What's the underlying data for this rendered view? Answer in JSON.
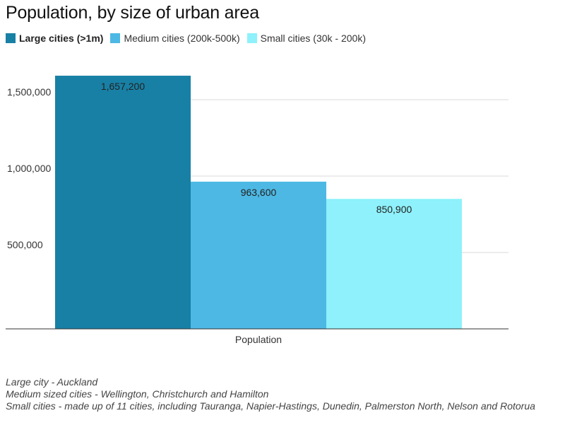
{
  "chart_data": {
    "type": "bar",
    "title": "Population, by size of urban area",
    "categories": [
      "Population"
    ],
    "series": [
      {
        "name": "Large cities (>1m)",
        "values": [
          1657200
        ],
        "label": "1,657,200",
        "color": "#1880a5",
        "highlighted": true
      },
      {
        "name": "Medium cities (200k-500k)",
        "values": [
          963600
        ],
        "label": "963,600",
        "color": "#4db8e4",
        "highlighted": false
      },
      {
        "name": "Small cities (30k - 200k)",
        "values": [
          850900
        ],
        "label": "850,900",
        "color": "#8ef1fb",
        "highlighted": false
      }
    ],
    "ylim": [
      0,
      1650000
    ],
    "yticks": [
      500000,
      1000000,
      1500000
    ],
    "ytick_labels": [
      "500,000",
      "1,000,000",
      "1,500,000"
    ],
    "xlabel": "",
    "ylabel": "",
    "grid": true,
    "legend_position": "top-left"
  },
  "notes": [
    "Large city - Auckland",
    "Medium sized cities - Wellington, Christchurch and Hamilton",
    "Small cities - made up of 11 cities, including Tauranga, Napier-Hastings, Dunedin, Palmerston North, Nelson and Rotorua"
  ]
}
